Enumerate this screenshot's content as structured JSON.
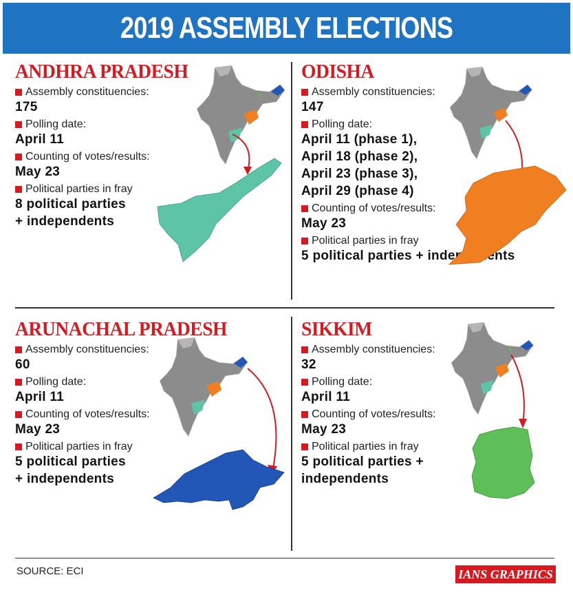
{
  "title": "2019 ASSEMBLY ELECTIONS",
  "labels": {
    "constituencies": "Assembly constituencies:",
    "polling": "Polling date:",
    "counting": "Counting of votes/results:",
    "parties": "Political parties in fray"
  },
  "states": [
    {
      "name": "ANDHRA PRADESH",
      "constituencies": "175",
      "polling_date": "April 11",
      "counting": "May 23",
      "parties_line1": "8 political parties",
      "parties_line2": "+ independents",
      "map_color": "#5ec4a8"
    },
    {
      "name": "ODISHA",
      "constituencies": "147",
      "polling_phases": [
        "April 11 (phase 1),",
        "April 18 (phase 2),",
        "April 23 (phase 3),",
        "April 29 (phase 4)"
      ],
      "counting": "May 23",
      "parties": "5 political parties + independents",
      "map_color": "#f07f22"
    },
    {
      "name": "ARUNACHAL PRADESH",
      "constituencies": "60",
      "polling_date": "April 11",
      "counting": "May 23",
      "parties_line1": "5 political parties",
      "parties_line2": "+ independents",
      "map_color": "#2257b8"
    },
    {
      "name": "SIKKIM",
      "constituencies": "32",
      "polling_date": "April 11",
      "counting": "May 23",
      "parties_line1": "5 political parties +",
      "parties_line2": "independents",
      "map_color": "#5cbf58"
    }
  ],
  "colors": {
    "title_bg": "#1e73c2",
    "accent_red": "#d71920",
    "india_gray": "#8c8c8c"
  },
  "source": "SOURCE: ECI",
  "brand": "IANS GRAPHICS"
}
